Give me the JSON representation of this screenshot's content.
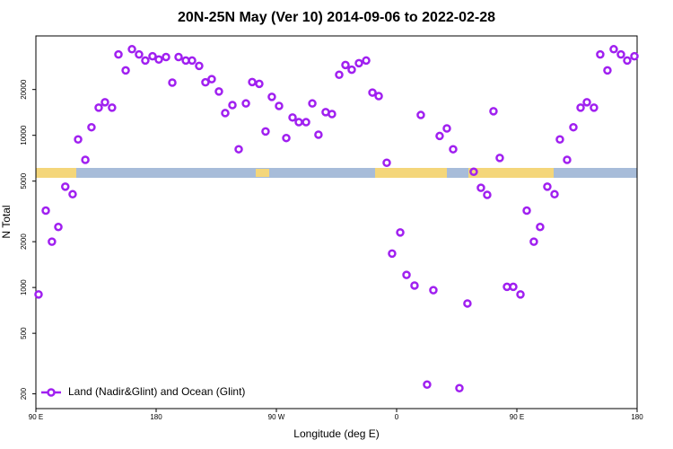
{
  "chart_data": {
    "type": "scatter",
    "title": "20N-25N May (Ver 10)   2014-09-06 to 2022-02-28",
    "x_label": "Longitude (deg E)",
    "y_label": "N Total",
    "log_y": true,
    "legend": "lower left",
    "xlim": [
      90,
      540
    ],
    "ylim": [
      160,
      45000
    ],
    "xticks": [
      {
        "value": 90,
        "label": "90 E"
      },
      180,
      {
        "value": 270,
        "label": "90 W"
      },
      {
        "value": 360,
        "label": "0"
      },
      {
        "value": 450,
        "label": "90 E"
      },
      {
        "value": 540,
        "label": "180"
      }
    ],
    "yticks": [
      200,
      500,
      1000,
      2000,
      5000,
      10000,
      20000
    ],
    "series": [
      {
        "name": "Land (Nadir&Glint) and Ocean (Glint)",
        "color": "#a020f0",
        "x": [
          92,
          97.4,
          102,
          106.8,
          112,
          117.5,
          121.6,
          127,
          131.6,
          137,
          141.7,
          147,
          151.8,
          157.2,
          161.9,
          167.2,
          171.9,
          177.3,
          182,
          187.4,
          192.1,
          196.8,
          202.2,
          206.9,
          212.2,
          216.9,
          221.6,
          227,
          231.7,
          237.1,
          241.8,
          247.2,
          251.9,
          257.2,
          261.9,
          266.6,
          272,
          277.4,
          282.1,
          286.8,
          292.2,
          296.9,
          301.5,
          306.9,
          311.6,
          317,
          321.7,
          326.4,
          331.8,
          337.2,
          341.9,
          346.6,
          352.6,
          356.6,
          362.7,
          367.4,
          373.4,
          378.1,
          382.8,
          387.5,
          392.2,
          397.6,
          402.3,
          407,
          413,
          417.7,
          423.1,
          427.8,
          432.5,
          437.2,
          442.6,
          447.3,
          452.7,
          457.4,
          462.7,
          467.4,
          472.8,
          478.2,
          482.2,
          487.6,
          492.3,
          497.7,
          502.4,
          507.7,
          512.4,
          517.8,
          522.5,
          527.9,
          532.6,
          538
        ],
        "values": [
          900,
          3200,
          2000,
          2500,
          4600,
          4100,
          9400,
          6900,
          11300,
          15200,
          16500,
          15200,
          34000,
          26700,
          36800,
          34000,
          31000,
          33100,
          31500,
          32700,
          22200,
          32700,
          31000,
          31000,
          28600,
          22300,
          23400,
          19400,
          14000,
          15800,
          8100,
          16200,
          22400,
          21800,
          10600,
          17900,
          15600,
          9600,
          13100,
          12200,
          12200,
          16200,
          10100,
          14200,
          13800,
          25000,
          29000,
          27000,
          29800,
          31000,
          19100,
          18100,
          6600,
          1670,
          2300,
          1210,
          1030,
          13600,
          230,
          960,
          9900,
          11100,
          8100,
          218,
          785,
          5760,
          4520,
          4060,
          14400,
          7100,
          1010,
          1010,
          900,
          3200,
          2000,
          2500,
          4600,
          4100,
          9400,
          6900,
          11300,
          15200,
          16500,
          15200,
          34000,
          26700,
          36800,
          34000,
          31000,
          33100
        ]
      }
    ]
  }
}
